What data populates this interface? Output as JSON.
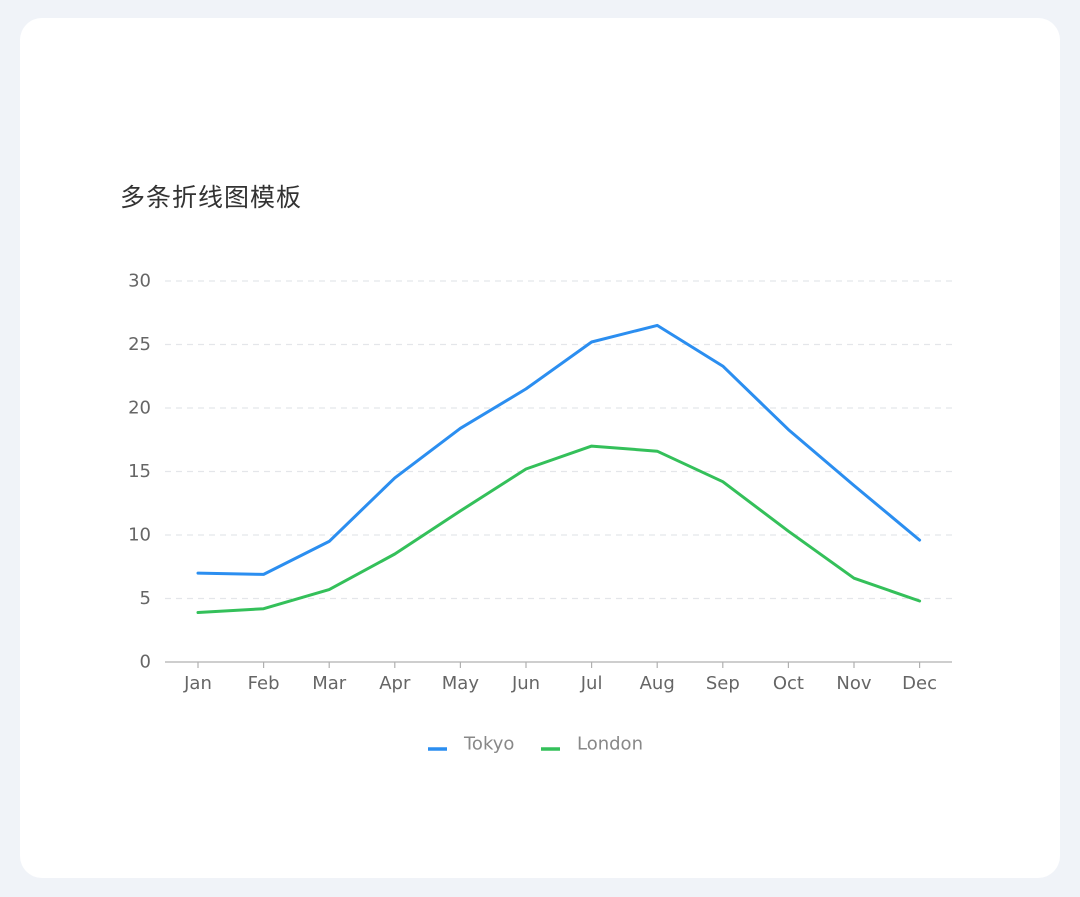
{
  "colors": {
    "tokyo": "#2b8ef0",
    "london": "#34c05a",
    "grid": "#e4e6ea",
    "axis": "#b0b0b0"
  },
  "chart_data": {
    "type": "line",
    "title": "多条折线图模板",
    "categories": [
      "Jan",
      "Feb",
      "Mar",
      "Apr",
      "May",
      "Jun",
      "Jul",
      "Aug",
      "Sep",
      "Oct",
      "Nov",
      "Dec"
    ],
    "series": [
      {
        "name": "Tokyo",
        "color": "#2b8ef0",
        "values": [
          7.0,
          6.9,
          9.5,
          14.5,
          18.4,
          21.5,
          25.2,
          26.5,
          23.3,
          18.3,
          13.9,
          9.6
        ]
      },
      {
        "name": "London",
        "color": "#34c05a",
        "values": [
          3.9,
          4.2,
          5.7,
          8.5,
          11.9,
          15.2,
          17.0,
          16.6,
          14.2,
          10.3,
          6.6,
          4.8
        ]
      }
    ],
    "yticks": [
      0,
      5,
      10,
      15,
      20,
      25,
      30
    ],
    "ylim": [
      0,
      30
    ],
    "grid": true,
    "legend": "bottom-center"
  }
}
